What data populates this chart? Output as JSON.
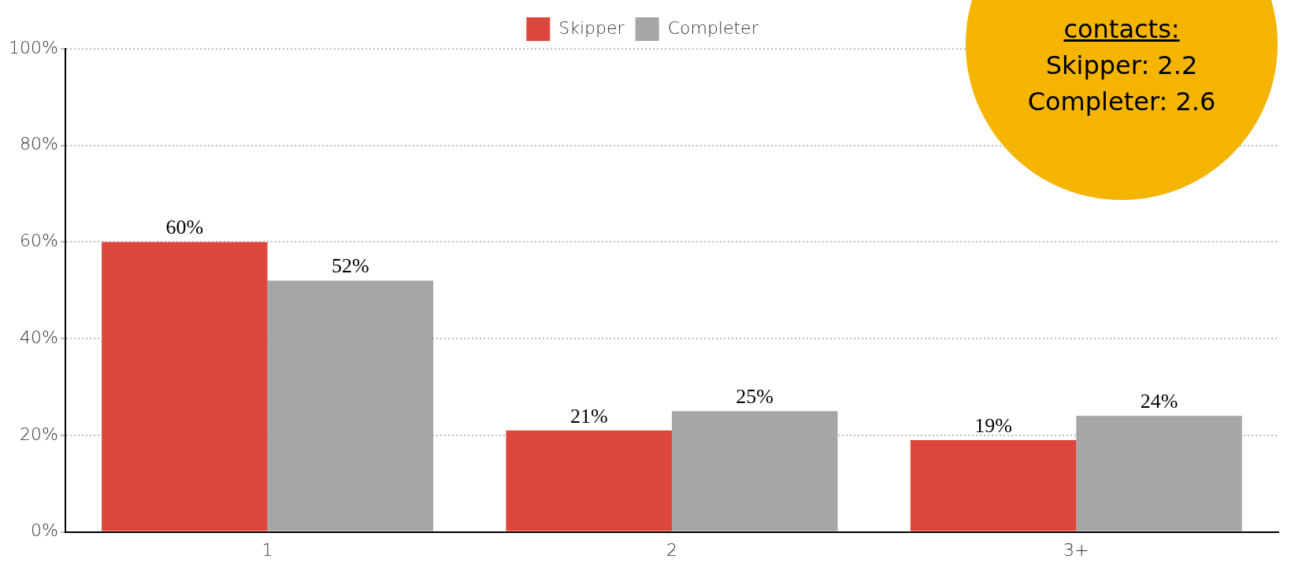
{
  "chart_data": {
    "type": "bar",
    "categories": [
      "1",
      "2",
      "3+"
    ],
    "series": [
      {
        "name": "Skipper",
        "color": "#dd463a",
        "values": [
          60,
          21,
          19
        ]
      },
      {
        "name": "Completer",
        "color": "#a6a6a6",
        "values": [
          52,
          25,
          24
        ]
      }
    ],
    "ylim": [
      0,
      100
    ],
    "yticks": [
      {
        "value": 0,
        "label": "0%"
      },
      {
        "value": 20,
        "label": "20%"
      },
      {
        "value": 40,
        "label": "40%"
      },
      {
        "value": 60,
        "label": "60%"
      },
      {
        "value": 80,
        "label": "80%"
      },
      {
        "value": 100,
        "label": "100%"
      }
    ],
    "grid": "y",
    "legend": "top",
    "value_labels": [
      [
        "60%",
        "21%",
        "19%"
      ],
      [
        "52%",
        "25%",
        "24%"
      ]
    ],
    "annotations": [
      "contacts:",
      "Skipper: 2.2",
      "Completer: 2.6"
    ]
  }
}
